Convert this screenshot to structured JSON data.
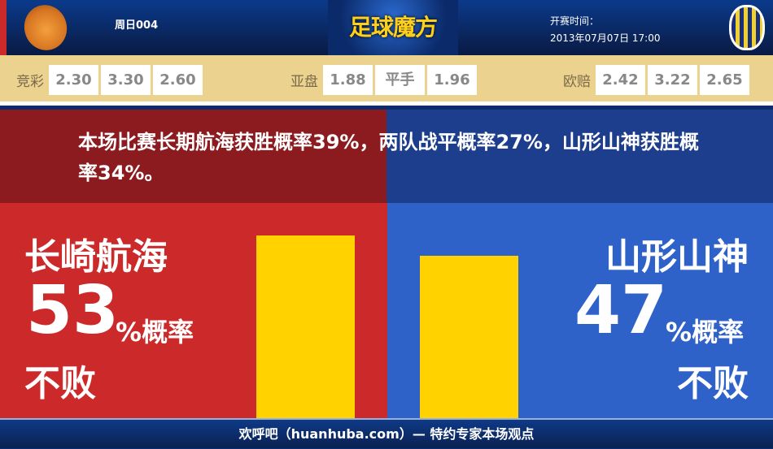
{
  "header": {
    "match_code": "周日004",
    "brand": "足球魔方",
    "kickoff_label": "开赛时间：",
    "kickoff_time": "2013年07月07日 17:00",
    "home_logo": "V-Varen Nagasaki crest",
    "away_logo": "Montedio Yamagata crest"
  },
  "odds": {
    "jingcai": {
      "label": "竞彩",
      "values": [
        "2.30",
        "3.30",
        "2.60"
      ]
    },
    "yapan": {
      "label": "亚盘",
      "values": [
        "1.88",
        "平手",
        "1.96"
      ]
    },
    "oupei": {
      "label": "欧赔",
      "values": [
        "2.42",
        "3.22",
        "2.65"
      ]
    }
  },
  "summary": "本场比赛长期航海获胜概率39%，两队战平概率27%，山形山神获胜概率34%。",
  "home": {
    "name": "长崎航海",
    "percent": "53",
    "unit": "%概率",
    "result": "不败",
    "value": 53
  },
  "away": {
    "name": "山形山神",
    "percent": "47",
    "unit": "%概率",
    "result": "不败",
    "value": 47
  },
  "colors": {
    "home": "#cc2a2a",
    "away": "#2f62c8",
    "bar": "#ffd200"
  },
  "footer": "欢呼吧（huanhuba.com）— 特约专家本场观点"
}
